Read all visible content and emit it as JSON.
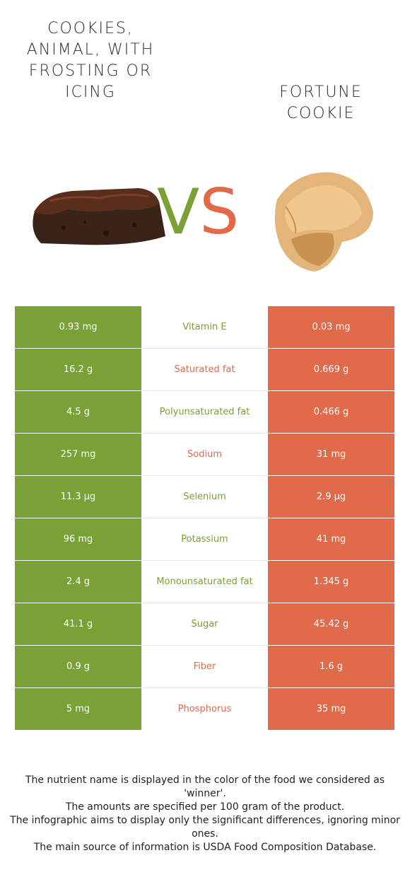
{
  "foods": {
    "left": {
      "name": "COOKIES, ANIMAL, WITH FROSTING OR ICING",
      "color": "#7aa135",
      "image_icon": "frosted-brownie-cookie"
    },
    "right": {
      "name": "FORTUNE COOKIE",
      "color": "#e16a4a",
      "image_icon": "fortune-cookie"
    }
  },
  "vs": {
    "v": "V",
    "s": "S"
  },
  "rows": [
    {
      "left": "0.93 mg",
      "nutrient": "Vitamin E",
      "right": "0.03 mg",
      "winner": "left"
    },
    {
      "left": "16.2 g",
      "nutrient": "Saturated fat",
      "right": "0.669 g",
      "winner": "right"
    },
    {
      "left": "4.5 g",
      "nutrient": "Polyunsaturated fat",
      "right": "0.466 g",
      "winner": "left"
    },
    {
      "left": "257 mg",
      "nutrient": "Sodium",
      "right": "31 mg",
      "winner": "right"
    },
    {
      "left": "11.3 µg",
      "nutrient": "Selenium",
      "right": "2.9 µg",
      "winner": "left"
    },
    {
      "left": "96 mg",
      "nutrient": "Potassium",
      "right": "41 mg",
      "winner": "left"
    },
    {
      "left": "2.4 g",
      "nutrient": "Monounsaturated fat",
      "right": "1.345 g",
      "winner": "left"
    },
    {
      "left": "41.1 g",
      "nutrient": "Sugar",
      "right": "45.42 g",
      "winner": "left"
    },
    {
      "left": "0.9 g",
      "nutrient": "Fiber",
      "right": "1.6 g",
      "winner": "right"
    },
    {
      "left": "5 mg",
      "nutrient": "Phosphorus",
      "right": "35 mg",
      "winner": "right"
    }
  ],
  "footer": {
    "line1": "The nutrient name is displayed in the color of the food we considered as 'winner'.",
    "line2": "The amounts are specified per 100 gram of the product.",
    "line3": "The infographic aims to display only the significant differences, ignoring minor ones.",
    "line4": "The main source of information is USDA Food Composition Database."
  }
}
